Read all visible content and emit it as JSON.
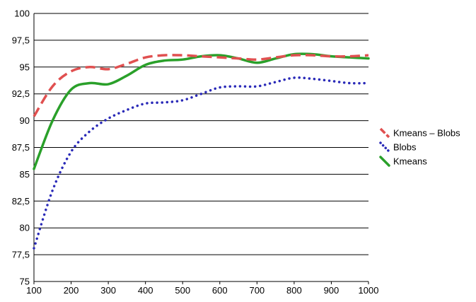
{
  "chart_data": {
    "type": "line",
    "title": "",
    "xlabel": "",
    "ylabel": "",
    "xlim": [
      100,
      1000
    ],
    "ylim": [
      75,
      100
    ],
    "x_ticks": [
      "100",
      "200",
      "300",
      "400",
      "500",
      "600",
      "700",
      "800",
      "900",
      "1000"
    ],
    "y_ticks": [
      "75",
      "77,5",
      "80",
      "82,5",
      "85",
      "87,5",
      "90",
      "92,5",
      "95",
      "97,5",
      "100"
    ],
    "grid": "horizontal",
    "legend_position": "right",
    "series": [
      {
        "name": "Kmeans – Blobs",
        "color": "#e05050",
        "style": "dashed",
        "x": [
          100,
          150,
          200,
          250,
          300,
          350,
          400,
          450,
          500,
          550,
          600,
          650,
          700,
          750,
          800,
          850,
          900,
          950,
          1000
        ],
        "y": [
          90.4,
          93.2,
          94.6,
          95.0,
          94.8,
          95.3,
          95.9,
          96.1,
          96.1,
          96.0,
          95.9,
          95.8,
          95.7,
          95.9,
          96.1,
          96.1,
          96.0,
          96.0,
          96.1
        ]
      },
      {
        "name": "Blobs",
        "color": "#2a2ab8",
        "style": "dotted",
        "x": [
          100,
          150,
          200,
          250,
          300,
          350,
          400,
          450,
          500,
          550,
          600,
          650,
          700,
          750,
          800,
          850,
          900,
          950,
          1000
        ],
        "y": [
          78.1,
          83.5,
          87.1,
          89.0,
          90.2,
          91.0,
          91.6,
          91.7,
          91.9,
          92.5,
          93.1,
          93.2,
          93.2,
          93.6,
          94.0,
          93.9,
          93.7,
          93.5,
          93.5
        ]
      },
      {
        "name": "Kmeans",
        "color": "#2aa02a",
        "style": "solid",
        "x": [
          100,
          150,
          200,
          250,
          300,
          350,
          400,
          450,
          500,
          550,
          600,
          650,
          700,
          750,
          800,
          850,
          900,
          950,
          1000
        ],
        "y": [
          85.5,
          90.0,
          92.9,
          93.5,
          93.4,
          94.2,
          95.2,
          95.6,
          95.7,
          96.0,
          96.1,
          95.8,
          95.4,
          95.8,
          96.2,
          96.2,
          96.0,
          95.9,
          95.8
        ]
      }
    ]
  }
}
